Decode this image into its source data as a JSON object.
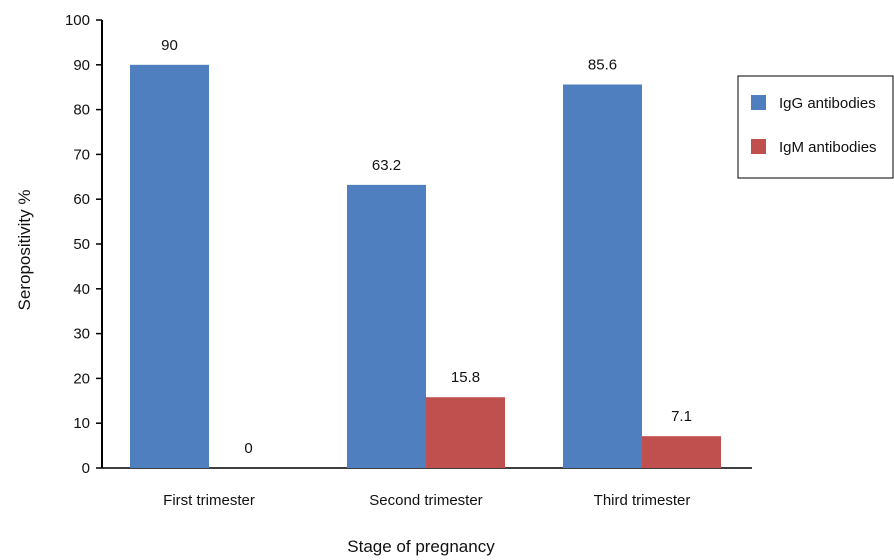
{
  "chart_data": {
    "type": "bar",
    "categories": [
      "First trimester",
      "Second trimester",
      "Third trimester"
    ],
    "series": [
      {
        "name": "IgG antibodies",
        "values": [
          90,
          63.2,
          85.6
        ],
        "labels": [
          "90",
          "63.2",
          "85.6"
        ],
        "color": "#4F7FBE"
      },
      {
        "name": "IgM antibodies",
        "values": [
          0,
          15.8,
          7.1
        ],
        "labels": [
          "0",
          "15.8",
          "7.1"
        ],
        "color": "#C0504D"
      }
    ],
    "title": "",
    "xlabel": "Stage of pregnancy",
    "ylabel": "Seropositivity %",
    "ylim": [
      0,
      100
    ],
    "yticks": [
      0,
      10,
      20,
      30,
      40,
      50,
      60,
      70,
      80,
      90,
      100
    ],
    "grid": false,
    "legend_position": "top-right"
  }
}
